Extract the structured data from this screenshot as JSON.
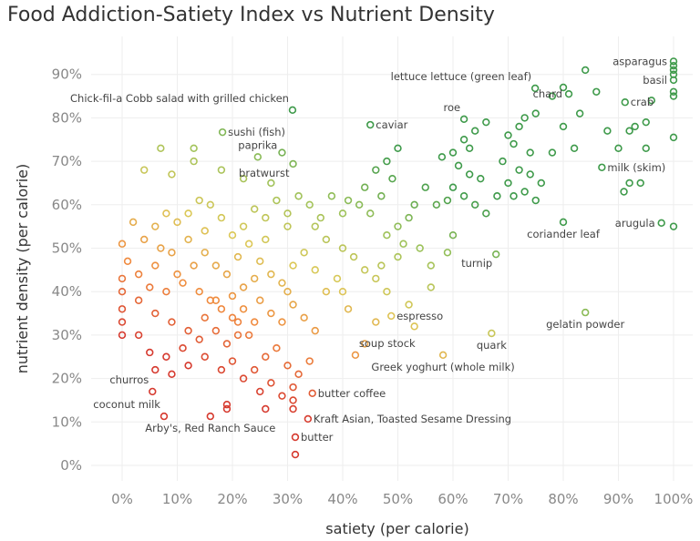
{
  "chart_data": {
    "type": "scatter",
    "title": "Food Addiction-Satiety Index vs Nutrient Density",
    "xlabel": "satiety (per calorie)",
    "ylabel": "nutrient density (per calorie)",
    "xlim": [
      -5,
      105
    ],
    "ylim": [
      -3,
      95
    ],
    "xticks": [
      "0%",
      "10%",
      "20%",
      "30%",
      "40%",
      "50%",
      "60%",
      "70%",
      "80%",
      "90%",
      "100%"
    ],
    "yticks": [
      "0%",
      "10%",
      "20%",
      "30%",
      "40%",
      "50%",
      "60%",
      "70%",
      "80%",
      "90%"
    ],
    "grid": true,
    "marker": "hollow-circle",
    "colors": {
      "low": "#d63a2f",
      "mid_low": "#f08a3e",
      "mid": "#dcc857",
      "mid_high": "#9cc25a",
      "high": "#3e9a4a"
    },
    "labeled_points": [
      {
        "label": "asparagus",
        "x": 100,
        "y": 93,
        "side": "left"
      },
      {
        "label": "basil",
        "x": 100,
        "y": 88.7,
        "side": "left"
      },
      {
        "label": "crab",
        "x": 91.2,
        "y": 83.6,
        "side": "right"
      },
      {
        "label": "chard",
        "x": 81,
        "y": 85.5,
        "side": "left"
      },
      {
        "label": "lettuce lettuce (green leaf)",
        "x": 74.9,
        "y": 86.8,
        "side": "above-left"
      },
      {
        "label": "Chick-fil-a Cobb salad with grilled chicken",
        "x": 30.9,
        "y": 81.8,
        "side": "above-left"
      },
      {
        "label": "sushi (fish)",
        "x": 18.2,
        "y": 76.7,
        "side": "right"
      },
      {
        "label": "caviar",
        "x": 45,
        "y": 78.4,
        "side": "right"
      },
      {
        "label": "roe",
        "x": 62,
        "y": 79.7,
        "side": "above-left"
      },
      {
        "label": "paprika",
        "x": 24.6,
        "y": 71,
        "side": "above"
      },
      {
        "label": "bratwurst",
        "x": 31,
        "y": 69.4,
        "side": "below-left"
      },
      {
        "label": "milk (skim)",
        "x": 87,
        "y": 68.6,
        "side": "right"
      },
      {
        "label": "arugula",
        "x": 97.8,
        "y": 55.8,
        "side": "left"
      },
      {
        "label": "coriander leaf",
        "x": 80,
        "y": 56,
        "side": "below"
      },
      {
        "label": "turnip",
        "x": 67.8,
        "y": 48.6,
        "side": "below-left"
      },
      {
        "label": "gelatin powder",
        "x": 84,
        "y": 35.2,
        "side": "below"
      },
      {
        "label": "espresso",
        "x": 48.8,
        "y": 34.4,
        "side": "right"
      },
      {
        "label": "quark",
        "x": 67,
        "y": 30.4,
        "side": "below"
      },
      {
        "label": "soup stock",
        "x": 42.3,
        "y": 25.4,
        "side": "above-right"
      },
      {
        "label": "Greek yoghurt (whole milk)",
        "x": 58.2,
        "y": 25.4,
        "side": "below"
      },
      {
        "label": "churros",
        "x": 5.5,
        "y": 17,
        "side": "above-left"
      },
      {
        "label": "coconut milk",
        "x": 7.6,
        "y": 11.3,
        "side": "above-left"
      },
      {
        "label": "Arby's, Red Ranch Sauce",
        "x": 16,
        "y": 11.3,
        "side": "below"
      },
      {
        "label": "butter coffee",
        "x": 34.5,
        "y": 16.6,
        "side": "right"
      },
      {
        "label": "Kraft Asian, Toasted Sesame Dressing",
        "x": 33.7,
        "y": 10.7,
        "side": "right"
      },
      {
        "label": "butter",
        "x": 31.4,
        "y": 6.5,
        "side": "right"
      }
    ],
    "points": [
      [
        100,
        92
      ],
      [
        100,
        91
      ],
      [
        100,
        90
      ],
      [
        100,
        86
      ],
      [
        100,
        85
      ],
      [
        100,
        75.5
      ],
      [
        100,
        55
      ],
      [
        31.4,
        2.5
      ],
      [
        96,
        84
      ],
      [
        95,
        79
      ],
      [
        93,
        78
      ],
      [
        92,
        77
      ],
      [
        88,
        77
      ],
      [
        90,
        73
      ],
      [
        95,
        73
      ],
      [
        94,
        65
      ],
      [
        92,
        65
      ],
      [
        91,
        63
      ],
      [
        86,
        86
      ],
      [
        84,
        91
      ],
      [
        78,
        85
      ],
      [
        80,
        87
      ],
      [
        83,
        81
      ],
      [
        80,
        78
      ],
      [
        82,
        73
      ],
      [
        78,
        72
      ],
      [
        75,
        81
      ],
      [
        73,
        80
      ],
      [
        72,
        78
      ],
      [
        70,
        76
      ],
      [
        71,
        74
      ],
      [
        74,
        72
      ],
      [
        69,
        70
      ],
      [
        72,
        68
      ],
      [
        74,
        67
      ],
      [
        76,
        65
      ],
      [
        70,
        65
      ],
      [
        68,
        62
      ],
      [
        71,
        62
      ],
      [
        73,
        63
      ],
      [
        75,
        61
      ],
      [
        66,
        79
      ],
      [
        64,
        77
      ],
      [
        62,
        75
      ],
      [
        63,
        73
      ],
      [
        60,
        72
      ],
      [
        58,
        71
      ],
      [
        61,
        69
      ],
      [
        63,
        67
      ],
      [
        65,
        66
      ],
      [
        60,
        64
      ],
      [
        62,
        62
      ],
      [
        59,
        61
      ],
      [
        57,
        60
      ],
      [
        64,
        60
      ],
      [
        66,
        58
      ],
      [
        55,
        64
      ],
      [
        53,
        60
      ],
      [
        52,
        57
      ],
      [
        50,
        55
      ],
      [
        48,
        53
      ],
      [
        51,
        51
      ],
      [
        54,
        50
      ],
      [
        56,
        46
      ],
      [
        59,
        49
      ],
      [
        60,
        53
      ],
      [
        50,
        73
      ],
      [
        48,
        70
      ],
      [
        46,
        68
      ],
      [
        49,
        66
      ],
      [
        44,
        64
      ],
      [
        47,
        62
      ],
      [
        45,
        58
      ],
      [
        43,
        60
      ],
      [
        41,
        61
      ],
      [
        40,
        58
      ],
      [
        38,
        62
      ],
      [
        36,
        57
      ],
      [
        35,
        55
      ],
      [
        37,
        52
      ],
      [
        40,
        50
      ],
      [
        42,
        48
      ],
      [
        44,
        45
      ],
      [
        46,
        43
      ],
      [
        39,
        43
      ],
      [
        37,
        40
      ],
      [
        41,
        36
      ],
      [
        34,
        60
      ],
      [
        32,
        62
      ],
      [
        30,
        58
      ],
      [
        28,
        61
      ],
      [
        26,
        57
      ],
      [
        24,
        59
      ],
      [
        22,
        55
      ],
      [
        20,
        53
      ],
      [
        18,
        57
      ],
      [
        16,
        60
      ],
      [
        14,
        61
      ],
      [
        12,
        58
      ],
      [
        10,
        56
      ],
      [
        8,
        58
      ],
      [
        6,
        55
      ],
      [
        4,
        52
      ],
      [
        2,
        56
      ],
      [
        0,
        51
      ],
      [
        1,
        47
      ],
      [
        0,
        43
      ],
      [
        0,
        40
      ],
      [
        0,
        36
      ],
      [
        0,
        33
      ],
      [
        0,
        30
      ],
      [
        4,
        68
      ],
      [
        7,
        73
      ],
      [
        13,
        73
      ],
      [
        13,
        70
      ],
      [
        9,
        67
      ],
      [
        18,
        68
      ],
      [
        22,
        66
      ],
      [
        27,
        65
      ],
      [
        29,
        72
      ],
      [
        3,
        44
      ],
      [
        6,
        46
      ],
      [
        9,
        49
      ],
      [
        12,
        52
      ],
      [
        15,
        49
      ],
      [
        17,
        46
      ],
      [
        19,
        44
      ],
      [
        21,
        48
      ],
      [
        23,
        51
      ],
      [
        25,
        47
      ],
      [
        27,
        44
      ],
      [
        29,
        42
      ],
      [
        31,
        46
      ],
      [
        33,
        49
      ],
      [
        35,
        45
      ],
      [
        11,
        42
      ],
      [
        14,
        40
      ],
      [
        16,
        38
      ],
      [
        8,
        40
      ],
      [
        5,
        41
      ],
      [
        3,
        38
      ],
      [
        6,
        35
      ],
      [
        9,
        33
      ],
      [
        12,
        31
      ],
      [
        15,
        34
      ],
      [
        18,
        36
      ],
      [
        20,
        39
      ],
      [
        22,
        41
      ],
      [
        25,
        38
      ],
      [
        27,
        35
      ],
      [
        29,
        33
      ],
      [
        31,
        37
      ],
      [
        33,
        34
      ],
      [
        35,
        31
      ],
      [
        30,
        40
      ],
      [
        24,
        33
      ],
      [
        21,
        30
      ],
      [
        19,
        28
      ],
      [
        17,
        31
      ],
      [
        14,
        29
      ],
      [
        11,
        27
      ],
      [
        8,
        25
      ],
      [
        5,
        26
      ],
      [
        3,
        30
      ],
      [
        6,
        22
      ],
      [
        9,
        21
      ],
      [
        12,
        23
      ],
      [
        15,
        25
      ],
      [
        18,
        22
      ],
      [
        20,
        24
      ],
      [
        22,
        20
      ],
      [
        24,
        22
      ],
      [
        26,
        25
      ],
      [
        28,
        27
      ],
      [
        30,
        23
      ],
      [
        32,
        21
      ],
      [
        34,
        24
      ],
      [
        27,
        19
      ],
      [
        25,
        17
      ],
      [
        29,
        16
      ],
      [
        31,
        18
      ],
      [
        31,
        15
      ],
      [
        31,
        13
      ],
      [
        19,
        13
      ],
      [
        19,
        14
      ],
      [
        26,
        13
      ],
      [
        21,
        33
      ],
      [
        23,
        30
      ],
      [
        20,
        34
      ],
      [
        17,
        38
      ],
      [
        22,
        36
      ],
      [
        24,
        43
      ],
      [
        46,
        33
      ],
      [
        53,
        32
      ],
      [
        44,
        28
      ],
      [
        40,
        40
      ],
      [
        48,
        40
      ],
      [
        52,
        37
      ],
      [
        56,
        41
      ],
      [
        47,
        46
      ],
      [
        50,
        48
      ],
      [
        30,
        55
      ],
      [
        26,
        52
      ],
      [
        15,
        54
      ],
      [
        10,
        44
      ],
      [
        7,
        50
      ],
      [
        13,
        46
      ]
    ]
  }
}
